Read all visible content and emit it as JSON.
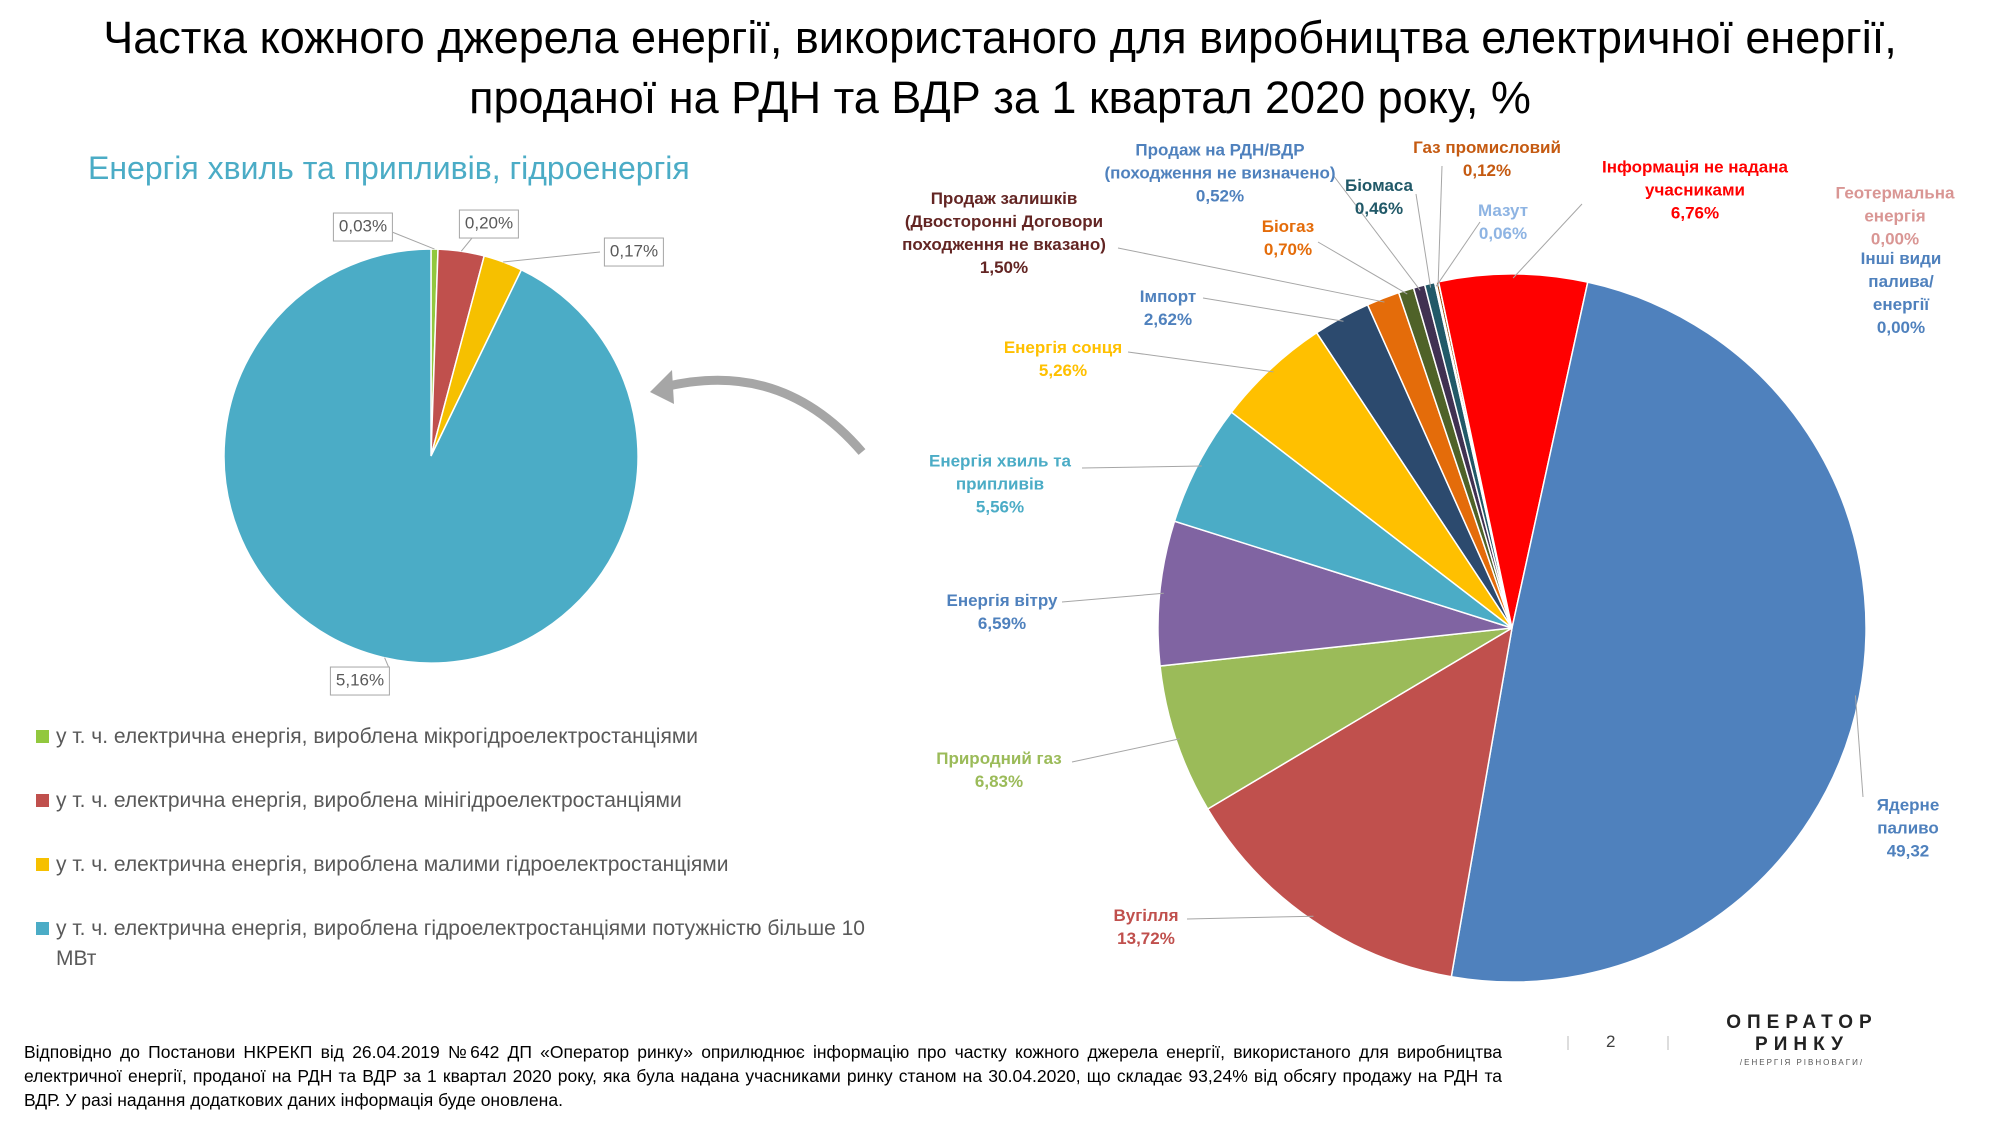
{
  "title": "Частка кожного джерела енергії, використаного для виробництва електричної енергії,\nпроданої на РДН та ВДР за 1 квартал 2020 року, %",
  "chart_data": [
    {
      "type": "pie",
      "title": "Енергія хвиль та припливів, гідроенергія",
      "categories": [
        "у т. ч. електрична енергія, вироблена мікрогідроелектростанціями",
        "у т. ч. електрична енергія, вироблена мінігідроелектростанціями",
        "у т. ч. електрична енергія, вироблена малими гідроелектростанціями",
        "у т. ч. електрична енергія, вироблена гідроелектростанціями потужністю більше 10 МВт"
      ],
      "values": [
        0.03,
        0.2,
        0.17,
        5.16
      ],
      "value_labels": [
        "0,03%",
        "0,20%",
        "0,17%",
        "5,16%"
      ],
      "colors": [
        "#92c83e",
        "#c0504d",
        "#f6c000",
        "#4bacc6"
      ],
      "legend": "bottom-left"
    },
    {
      "type": "pie",
      "categories": [
        "Імпорт",
        "Продаж залишків\n(Двосторонні Договори\nпоходження не вказано)",
        "Біогаз",
        "Продаж на РДН/ВДР\n(походження не визначено)",
        "Біомаса",
        "Мазут",
        "Газ промисловий",
        "Геотермальна енергія",
        "Інші види\nпалива/енергії",
        "Інформація не надана\nучасниками",
        "Ядерне паливо",
        "Вугілля",
        "Природний газ",
        "Енергія вітру",
        "Енергія хвиль та\nприпливів",
        "Енергія сонця"
      ],
      "values": [
        2.62,
        1.5,
        0.7,
        0.52,
        0.46,
        0.06,
        0.12,
        0.0,
        0.0,
        6.76,
        49.32,
        13.72,
        6.83,
        6.59,
        5.56,
        5.26
      ],
      "value_labels": [
        "2,62%",
        "1,50%",
        "0,70%",
        "0,52%",
        "0,46%",
        "0,06%",
        "0,12%",
        "0,00%",
        "0,00%",
        "6,76%",
        "49,32",
        "13,72%",
        "6,83%",
        "6,59%",
        "5,56%",
        "5,26%"
      ],
      "colors": [
        "#2c4a6e",
        "#e46c0a",
        "#4f6228",
        "#403152",
        "#215968",
        "#8eb4e3",
        "#984807",
        "#d99694",
        "#4f81bd",
        "#ff0000",
        "#4f81bd",
        "#c0504d",
        "#9bbb59",
        "#8064a2",
        "#4bacc6",
        "#ffc000"
      ],
      "label_colors": [
        "#4f81bd",
        "#632523",
        "#e46c0a",
        "#4f81bd",
        "#215968",
        "#8eb4e3",
        "#c55a11",
        "#d99694",
        "#4f81bd",
        "#ff0000",
        "#4f81bd",
        "#c0504d",
        "#9bbb59",
        "#4f81bd",
        "#4bacc6",
        "#ffc000"
      ]
    }
  ],
  "footnote": "Відповідно до Постанови НКРЕКП від 26.04.2019 №642 ДП «Оператор ринку» оприлюднює інформацію про частку кожного джерела енергії, використаного для виробництва електричної енергії, проданої на РДН та ВДР за 1 квартал  2020 року, яка була надана учасниками ринку станом на 30.04.2020, що складає 93,24% від обсягу продажу на РДН та ВДР.  У разі надання додаткових даних інформація буде оновлена.",
  "page_number": 2,
  "logo": {
    "line1": "ОПЕРАТОР",
    "line2": "РИНКУ",
    "tagline": "/ЕНЕРГІЯ РІВНОВАГИ/"
  }
}
